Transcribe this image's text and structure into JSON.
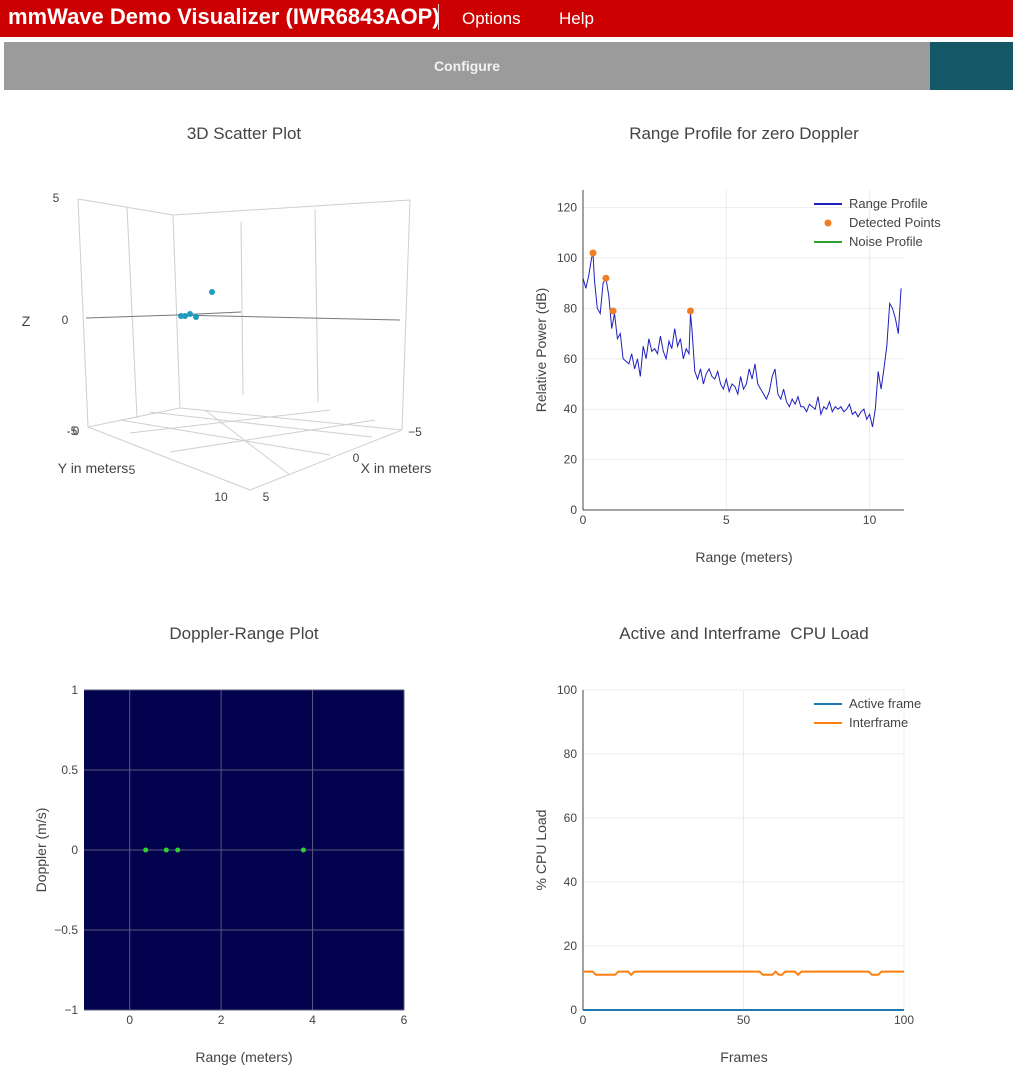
{
  "app": {
    "title": "mmWave Demo Visualizer (IWR6843AOP)",
    "menu": [
      "Options",
      "Help"
    ],
    "configure_label": "Configure",
    "colors": {
      "brand": "#cc0000",
      "toolbar": "#9b9b9b",
      "teal": "#145766"
    }
  },
  "scatter3d": {
    "title": "3D Scatter Plot",
    "z_label": "Z",
    "y_label": "Y in meters",
    "x_label": "X in meters",
    "z_ticks": [
      "5",
      "0",
      "-5"
    ],
    "y_ticks": [
      "0",
      "5",
      "10"
    ],
    "x_ticks": [
      "5",
      "0",
      "−5"
    ],
    "point_color": "#1f9bbf"
  },
  "chart_data": [
    {
      "type": "line",
      "title": "Range Profile for zero Doppler",
      "xlabel": "Range (meters)",
      "ylabel": "Relative Power (dB)",
      "xlim": [
        0,
        11.2
      ],
      "ylim": [
        0,
        127
      ],
      "xticks": [
        0,
        5,
        10
      ],
      "yticks": [
        0,
        20,
        40,
        60,
        80,
        100,
        120
      ],
      "grid": true,
      "legend": "top-right",
      "series": [
        {
          "name": "Range Profile",
          "color": "#1f1fbf",
          "x": [
            0,
            0.1,
            0.2,
            0.3,
            0.35,
            0.4,
            0.5,
            0.6,
            0.7,
            0.8,
            0.9,
            1.0,
            1.1,
            1.2,
            1.3,
            1.4,
            1.5,
            1.6,
            1.7,
            1.8,
            1.9,
            2.0,
            2.1,
            2.2,
            2.3,
            2.4,
            2.5,
            2.6,
            2.7,
            2.8,
            2.9,
            3.0,
            3.1,
            3.2,
            3.3,
            3.4,
            3.5,
            3.6,
            3.7,
            3.75,
            3.8,
            3.9,
            4.0,
            4.1,
            4.2,
            4.3,
            4.4,
            4.5,
            4.6,
            4.7,
            4.8,
            4.9,
            5.0,
            5.1,
            5.2,
            5.3,
            5.4,
            5.5,
            5.6,
            5.7,
            5.8,
            5.9,
            6.0,
            6.1,
            6.2,
            6.3,
            6.4,
            6.5,
            6.6,
            6.7,
            6.8,
            6.9,
            7.0,
            7.1,
            7.2,
            7.3,
            7.4,
            7.5,
            7.6,
            7.7,
            7.8,
            7.9,
            8.0,
            8.1,
            8.2,
            8.3,
            8.4,
            8.5,
            8.6,
            8.7,
            8.8,
            8.9,
            9.0,
            9.1,
            9.2,
            9.3,
            9.4,
            9.5,
            9.6,
            9.7,
            9.8,
            9.9,
            10.0,
            10.1,
            10.2,
            10.3,
            10.4,
            10.5,
            10.6,
            10.7,
            10.8,
            10.9,
            11.0,
            11.1
          ],
          "y": [
            92,
            88,
            93,
            100,
            102,
            91,
            80,
            78,
            90,
            92,
            85,
            72,
            78,
            68,
            70,
            60,
            59,
            58,
            62,
            56,
            60,
            53,
            65,
            60,
            68,
            63,
            64,
            62,
            69,
            63,
            60,
            67,
            64,
            72,
            65,
            68,
            60,
            64,
            62,
            78,
            72,
            55,
            52,
            56,
            50,
            54,
            56,
            53,
            52,
            55,
            50,
            48,
            52,
            47,
            50,
            49,
            46,
            53,
            48,
            50,
            56,
            52,
            58,
            50,
            48,
            46,
            44,
            47,
            53,
            56,
            46,
            44,
            48,
            43,
            41,
            44,
            42,
            45,
            41,
            41,
            39,
            42,
            41,
            40,
            45,
            38,
            41,
            40,
            43,
            39,
            41,
            40,
            41,
            39,
            40,
            42,
            38,
            39,
            37,
            39,
            40,
            36,
            38,
            33,
            40,
            55,
            48,
            56,
            65,
            82,
            80,
            76,
            70,
            88
          ]
        },
        {
          "name": "Detected Points",
          "color": "#f07e26",
          "x": [
            0.35,
            0.8,
            1.05,
            3.75
          ],
          "y": [
            102,
            92,
            79,
            79
          ]
        },
        {
          "name": "Noise Profile",
          "color": "#2ca02c",
          "x": [],
          "y": []
        }
      ]
    },
    {
      "type": "scatter",
      "title": "Doppler-Range Plot",
      "xlabel": "Range (meters)",
      "ylabel": "Doppler (m/s)",
      "xlim": [
        -1,
        6
      ],
      "ylim": [
        -1,
        1
      ],
      "xticks": [
        0,
        2,
        4,
        6
      ],
      "yticks": [
        -1,
        -0.5,
        0,
        0.5,
        1
      ],
      "ytick_labels": [
        "−1",
        "−0.5",
        "0",
        "0.5",
        "1"
      ],
      "background": "#02024f",
      "grid": true,
      "series": [
        {
          "color": "#2ad42a",
          "x": [
            0.35,
            0.8,
            1.05,
            3.8
          ],
          "y": [
            0,
            0,
            0,
            0
          ]
        }
      ]
    },
    {
      "type": "line",
      "title": "Active and Interframe  CPU Load",
      "xlabel": "Frames",
      "ylabel": "% CPU Load",
      "xlim": [
        0,
        100
      ],
      "ylim": [
        0,
        100
      ],
      "xticks": [
        0,
        50,
        100
      ],
      "yticks": [
        0,
        20,
        40,
        60,
        80,
        100
      ],
      "grid": true,
      "legend": "top-right",
      "series": [
        {
          "name": "Active frame",
          "color": "#1f77b4",
          "x": [
            0,
            100
          ],
          "y": [
            0,
            0
          ]
        },
        {
          "name": "Interframe",
          "color": "#ff7f0e",
          "x": [
            0,
            3,
            4,
            10,
            11,
            14,
            15,
            16,
            55,
            56,
            59,
            60,
            61,
            62,
            63,
            66,
            67,
            68,
            89,
            90,
            92,
            93,
            100
          ],
          "y": [
            12,
            12,
            11,
            11,
            12,
            12,
            11,
            12,
            12,
            11,
            11,
            12,
            11,
            11,
            12,
            12,
            11,
            12,
            12,
            11,
            11,
            12,
            12
          ]
        }
      ]
    }
  ]
}
